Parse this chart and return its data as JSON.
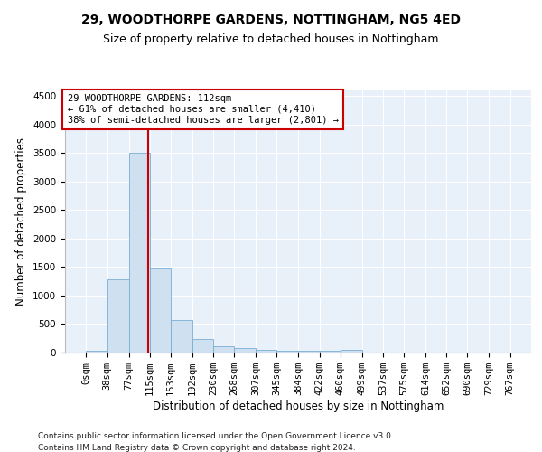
{
  "title": "29, WOODTHORPE GARDENS, NOTTINGHAM, NG5 4ED",
  "subtitle": "Size of property relative to detached houses in Nottingham",
  "xlabel": "Distribution of detached houses by size in Nottingham",
  "ylabel": "Number of detached properties",
  "bar_color": "#cfe0f0",
  "bar_edge_color": "#7aadd4",
  "background_color": "#e8f0fa",
  "grid_color": "#ffffff",
  "vline_x": 112,
  "vline_color": "#cc0000",
  "annotation_box_color": "#cc0000",
  "annotation_lines": [
    "29 WOODTHORPE GARDENS: 112sqm",
    "← 61% of detached houses are smaller (4,410)",
    "38% of semi-detached houses are larger (2,801) →"
  ],
  "bin_edges": [
    0,
    38,
    77,
    115,
    153,
    192,
    230,
    268,
    307,
    345,
    384,
    422,
    460,
    499,
    537,
    575,
    614,
    652,
    690,
    729,
    767
  ],
  "bar_heights": [
    30,
    1280,
    3500,
    1480,
    570,
    240,
    110,
    75,
    55,
    30,
    30,
    30,
    50,
    0,
    0,
    0,
    0,
    0,
    0,
    0
  ],
  "ylim": [
    0,
    4600
  ],
  "yticks": [
    0,
    500,
    1000,
    1500,
    2000,
    2500,
    3000,
    3500,
    4000,
    4500
  ],
  "footer_lines": [
    "Contains HM Land Registry data © Crown copyright and database right 2024.",
    "Contains public sector information licensed under the Open Government Licence v3.0."
  ],
  "title_fontsize": 10,
  "subtitle_fontsize": 9,
  "xlabel_fontsize": 8.5,
  "ylabel_fontsize": 8.5,
  "tick_fontsize": 7.5,
  "annotation_fontsize": 7.5,
  "footer_fontsize": 6.5
}
